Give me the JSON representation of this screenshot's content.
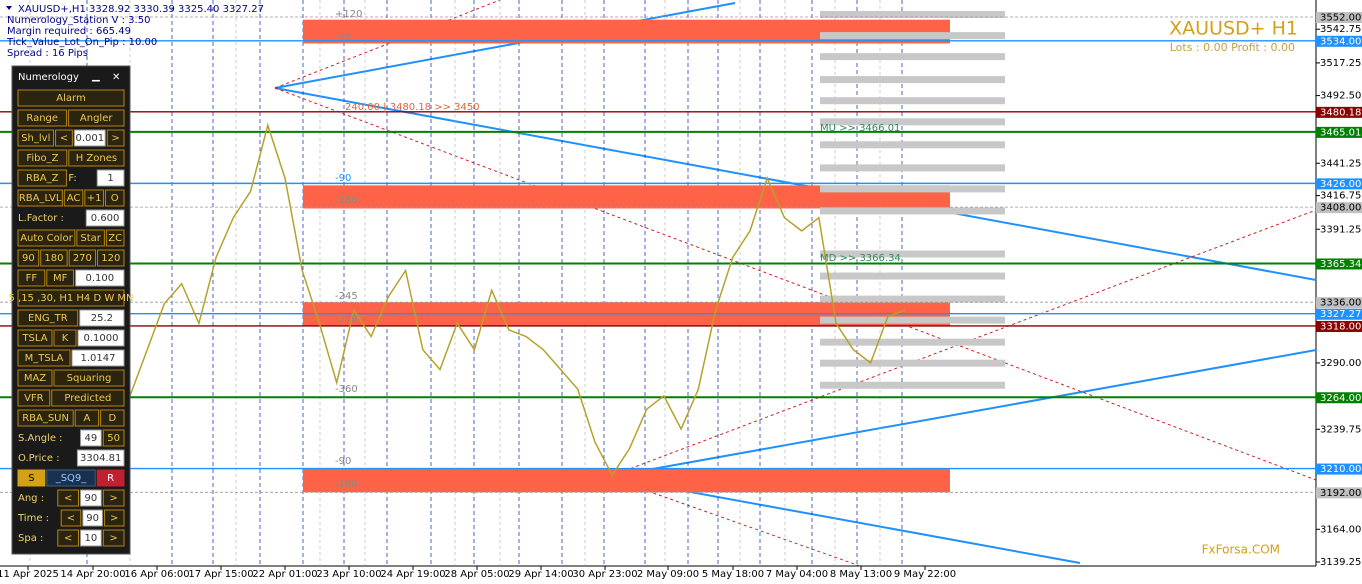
{
  "info": [
    "XAUUSD+,H1  3328.92 3330.39 3325.40 3327.27",
    "Numerology_Station V : 3.50",
    "Margin required : 665.49",
    "Tick_Value_Lot_On_Pip : 10.00",
    "Spread : 16  Pips"
  ],
  "symbol": "XAUUSD+ H1",
  "account": "Lots : 0.00 Profit : 0.00",
  "watermark": "FxForsa.COM",
  "chart_data": {
    "type": "line",
    "color": "#b5a22a",
    "values": [
      3265,
      3300,
      3335,
      3350,
      3320,
      3370,
      3400,
      3420,
      3470,
      3430,
      3360,
      3320,
      3275,
      3330,
      3310,
      3340,
      3360,
      3300,
      3285,
      3320,
      3300,
      3345,
      3315,
      3310,
      3300,
      3285,
      3270,
      3230,
      3205,
      3225,
      3255,
      3265,
      3240,
      3270,
      3330,
      3370,
      3390,
      3430,
      3400,
      3390,
      3400,
      3320,
      3300,
      3290,
      3325,
      3330
    ],
    "ylim": [
      3136.2,
      3564.9
    ],
    "yticks": [
      3542.75,
      3517.25,
      {
        "value": 3492.5,
        "label": "3492.50"
      },
      3441.25,
      3416.75,
      3391.25,
      {
        "value": 3290,
        "label": "3290.00"
      },
      3239.75,
      {
        "value": 3164,
        "label": "3164.00"
      },
      3139.25
    ],
    "time_labels": [
      "11 Apr 2025",
      "14 Apr 20:00",
      "16 Apr 06:00",
      "17 Apr 15:00",
      "22 Apr 01:00",
      "23 Apr 10:00",
      "24 Apr 19:00",
      "28 Apr 05:00",
      "29 Apr 14:00",
      "30 Apr 23:00",
      "2 May 09:00",
      "5 May 18:00",
      "7 May 04:00",
      "8 May 13:00",
      "9 May 22:00"
    ],
    "levels": [
      {
        "value": 3552,
        "label": "3552.00",
        "color": "#c0c0c0"
      },
      {
        "value": 3534,
        "label": "3534.00",
        "color": "#1e90ff"
      },
      {
        "value": 3480.18,
        "label": "3480.18",
        "color": "#8b0000"
      },
      {
        "value": 3465.01,
        "label": "3465.01",
        "color": "#008000"
      },
      {
        "value": 3426,
        "label": "3426.00",
        "color": "#1e90ff"
      },
      {
        "value": 3408,
        "label": "3408.00",
        "color": "#c0c0c0"
      },
      {
        "value": 3365.34,
        "label": "3365.34",
        "color": "#008000"
      },
      {
        "value": 3336,
        "label": "3336.00",
        "color": "#c0c0c0"
      },
      {
        "value": 3327.27,
        "label": "3327.27",
        "color": "#1e90ff"
      },
      {
        "value": 3318,
        "label": "3318.00",
        "color": "#8b0000"
      },
      {
        "value": 3264,
        "label": "3264.00",
        "color": "#008000"
      },
      {
        "value": 3210,
        "label": "3210.00",
        "color": "#1e90ff"
      },
      {
        "value": 3192,
        "label": "3192.00",
        "color": "#c0c0c0"
      }
    ],
    "zones": [
      [
        3532,
        3550
      ],
      [
        3407,
        3424.5
      ],
      [
        3318,
        3336
      ],
      [
        3192,
        3210
      ]
    ],
    "gray_levels": [
      3554.3,
      3538.3,
      3522.4,
      3505,
      3489,
      3473,
      3455.6,
      3438.1,
      3422.2,
      3405.5,
      3372.9,
      3356.2,
      3338.7,
      3322.8,
      3306.1,
      3290.2,
      3273.5
    ],
    "annotations": [
      {
        "text": "+120",
        "color": "#888"
      },
      {
        "text": "-90",
        "color": "#888"
      },
      {
        "text": "-90",
        "color": "#1e90ff"
      },
      {
        "text": "-180",
        "color": "#888"
      },
      {
        "text": "-245",
        "color": "#888"
      },
      {
        "text": "-270",
        "color": "#888"
      },
      {
        "text": "-360",
        "color": "#888"
      },
      {
        "text": "-90",
        "color": "#888"
      },
      {
        "text": "-180",
        "color": "#888"
      },
      {
        "text": "240.00 | 3480.18  >> 3450",
        "color": "#e8603c"
      },
      {
        "text": "MU  >> 3466.01",
        "color": "#2e8b57"
      },
      {
        "text": "MD  >> 3366.34",
        "color": "#2e8b57"
      }
    ]
  },
  "panel": {
    "title": "Numerology",
    "rows": [
      [
        {
          "t": "Alarm",
          "k": "btn"
        }
      ],
      [
        {
          "t": "Range",
          "k": "btn"
        },
        {
          "t": "Angler",
          "k": "btn"
        }
      ],
      [
        {
          "t": "Sh_lvl",
          "k": "btn"
        },
        {
          "t": "<",
          "k": "btn"
        },
        {
          "t": "0.001",
          "k": "inp"
        },
        {
          "t": ">",
          "k": "btn"
        }
      ],
      [
        {
          "t": "Fibo_Z",
          "k": "btn"
        },
        {
          "t": "H Zones",
          "k": "btn"
        }
      ],
      [
        {
          "t": "RBA_Z",
          "k": "btn"
        },
        {
          "t": "F:",
          "k": "lbl"
        },
        {
          "t": "1",
          "k": "inp"
        }
      ],
      [
        {
          "t": "RBA_LVL",
          "k": "btn"
        },
        {
          "t": "AC",
          "k": "btn"
        },
        {
          "t": "+1",
          "k": "btn"
        },
        {
          "t": "O",
          "k": "btn"
        }
      ],
      [
        {
          "t": "L.Factor :",
          "k": "lbl"
        },
        {
          "t": "0.600",
          "k": "inp"
        }
      ],
      [
        {
          "t": "Auto Color",
          "k": "btn"
        },
        {
          "t": "Star",
          "k": "btn"
        },
        {
          "t": "ZC",
          "k": "btn"
        }
      ],
      [
        {
          "t": "90",
          "k": "btn"
        },
        {
          "t": "180",
          "k": "btn"
        },
        {
          "t": "270",
          "k": "btn"
        },
        {
          "t": "120",
          "k": "btn"
        }
      ],
      [
        {
          "t": "FF",
          "k": "btn"
        },
        {
          "t": "MF",
          "k": "btn"
        },
        {
          "t": "0.100",
          "k": "inp"
        }
      ],
      [
        {
          "t": "5 ,15 ,30, H1 H4 D W MN",
          "k": "btn"
        }
      ],
      [
        {
          "t": "ENG_TR",
          "k": "btn"
        },
        {
          "t": "25.2",
          "k": "inp"
        }
      ],
      [
        {
          "t": "TSLA",
          "k": "btn"
        },
        {
          "t": "K",
          "k": "btn"
        },
        {
          "t": "0.1000",
          "k": "inp"
        }
      ],
      [
        {
          "t": "M_TSLA",
          "k": "btn"
        },
        {
          "t": "1.0147",
          "k": "inp"
        }
      ],
      [
        {
          "t": "MAZ",
          "k": "btn"
        },
        {
          "t": "Squaring",
          "k": "btn"
        }
      ],
      [
        {
          "t": "VFR",
          "k": "btn"
        },
        {
          "t": "Predicted",
          "k": "btn"
        }
      ],
      [
        {
          "t": "RBA_SUN",
          "k": "btn"
        },
        {
          "t": "A",
          "k": "btn"
        },
        {
          "t": "D",
          "k": "btn"
        }
      ],
      [
        {
          "t": "S.Angle :",
          "k": "lbl"
        },
        {
          "t": "49",
          "k": "inp"
        },
        {
          "t": "50",
          "k": "btn"
        }
      ],
      [
        {
          "t": "O.Price :",
          "k": "lbl"
        },
        {
          "t": "3304.81",
          "k": "inp"
        }
      ],
      [
        {
          "t": "S",
          "k": "act"
        },
        {
          "t": "_SQ9_",
          "k": "dark"
        },
        {
          "t": "R",
          "k": "red"
        }
      ],
      [
        {
          "t": "Ang :",
          "k": "lbl"
        },
        {
          "t": "<",
          "k": "btn"
        },
        {
          "t": "90",
          "k": "inp"
        },
        {
          "t": ">",
          "k": "btn"
        }
      ],
      [
        {
          "t": "Time :",
          "k": "lbl"
        },
        {
          "t": "<",
          "k": "btn"
        },
        {
          "t": "90",
          "k": "inp"
        },
        {
          "t": ">",
          "k": "btn"
        }
      ],
      [
        {
          "t": "Spa :",
          "k": "lbl"
        },
        {
          "t": "<",
          "k": "btn"
        },
        {
          "t": "10",
          "k": "inp"
        },
        {
          "t": ">",
          "k": "btn"
        }
      ]
    ]
  }
}
